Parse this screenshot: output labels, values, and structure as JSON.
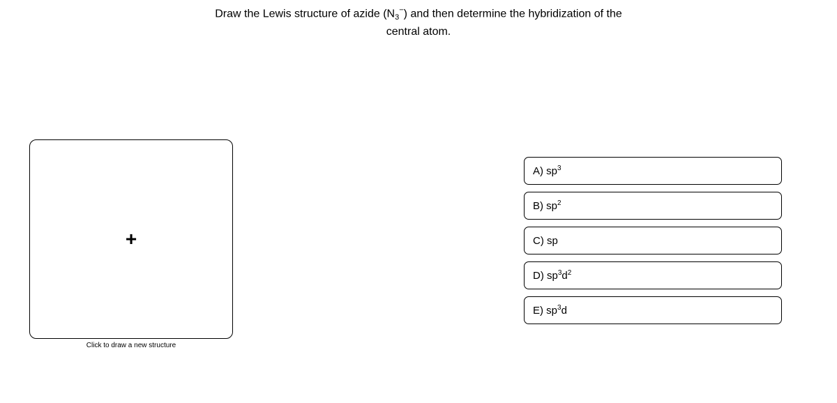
{
  "question": {
    "line1_pre": "Draw the Lewis structure of azide (N",
    "formula_sub": "3",
    "formula_sup": "−",
    "line1_post": ") and then determine the hybridization of the",
    "line2": "central atom."
  },
  "drawbox": {
    "plus": "+",
    "caption": "Click to draw a new structure"
  },
  "options": {
    "a": {
      "prefix": "A) sp",
      "sup": "3"
    },
    "b": {
      "prefix": "B) sp",
      "sup": "2"
    },
    "c": {
      "prefix": "C) sp",
      "sup": ""
    },
    "d": {
      "prefix": "D) sp",
      "sup1": "3",
      "mid": "d",
      "sup2": "2"
    },
    "e": {
      "prefix": "E) sp",
      "sup1": "3",
      "mid": "d",
      "sup2": ""
    }
  },
  "colors": {
    "background": "#ffffff",
    "text": "#000000",
    "border": "#000000"
  }
}
